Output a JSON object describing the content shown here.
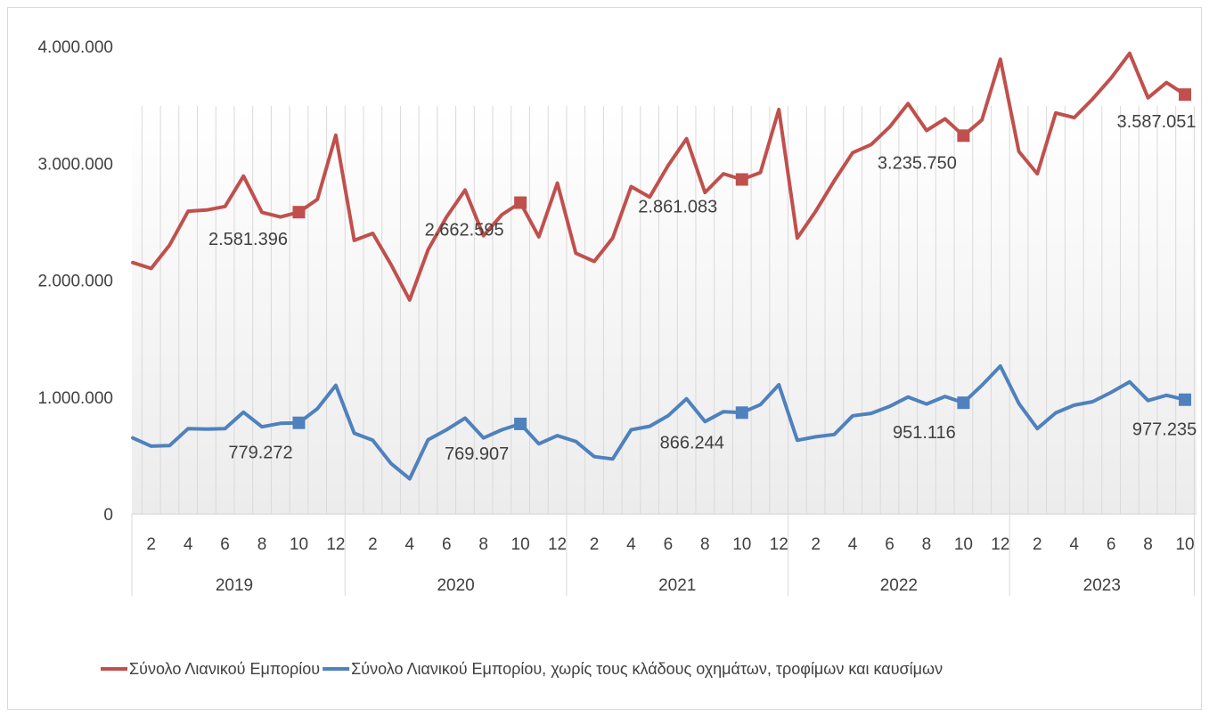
{
  "chart_data": {
    "type": "line",
    "y_ticks": [
      "4.000.000",
      "3.000.000",
      "2.000.000",
      "1.000.000",
      "0"
    ],
    "ylim": [
      0,
      4000000
    ],
    "grid": "vertical hairlines at each month",
    "legend_position": "bottom",
    "years": [
      "2019",
      "2020",
      "2021",
      "2022",
      "2023"
    ],
    "months_per_year": [
      12,
      12,
      12,
      12,
      10
    ],
    "x_tick_labels": [
      "2",
      "4",
      "6",
      "8",
      "10",
      "12"
    ],
    "series": [
      {
        "name": "Σύνολο Λιανικού Εμπορίου",
        "color": "#c0504d",
        "values": [
          2150000,
          2100000,
          2300000,
          2590000,
          2600000,
          2630000,
          2890000,
          2580000,
          2540000,
          2581396,
          2690000,
          3240000,
          2340000,
          2400000,
          2130000,
          1830000,
          2260000,
          2540000,
          2770000,
          2380000,
          2560000,
          2662595,
          2370000,
          2830000,
          2230000,
          2160000,
          2360000,
          2800000,
          2710000,
          2980000,
          3210000,
          2750000,
          2910000,
          2861083,
          2920000,
          3460000,
          2360000,
          2590000,
          2850000,
          3090000,
          3160000,
          3310000,
          3510000,
          3280000,
          3380000,
          3235750,
          3370000,
          3890000,
          3100000,
          2910000,
          3430000,
          3390000,
          3550000,
          3730000,
          3940000,
          3560000,
          3690000,
          3587051
        ],
        "labels": [
          {
            "index": 9,
            "text": "2.581.396"
          },
          {
            "index": 21,
            "text": "2.662.595"
          },
          {
            "index": 33,
            "text": "2.861.083"
          },
          {
            "index": 45,
            "text": "3.235.750"
          },
          {
            "index": 57,
            "text": "3.587.051"
          }
        ]
      },
      {
        "name": "Σύνολο Λιανικού Εμπορίου, χωρίς τους κλάδους οχημάτων, τροφίμων και καυσίμων",
        "color": "#4f81bd",
        "values": [
          650000,
          580000,
          585000,
          730000,
          725000,
          730000,
          870000,
          745000,
          775000,
          779272,
          900000,
          1100000,
          690000,
          630000,
          430000,
          300000,
          635000,
          720000,
          820000,
          650000,
          720000,
          769907,
          600000,
          670000,
          620000,
          490000,
          470000,
          720000,
          750000,
          840000,
          985000,
          790000,
          875000,
          866244,
          935000,
          1105000,
          630000,
          660000,
          680000,
          840000,
          860000,
          920000,
          1000000,
          940000,
          1005000,
          951116,
          1100000,
          1265000,
          945000,
          730000,
          865000,
          930000,
          960000,
          1040000,
          1130000,
          970000,
          1015000,
          977235
        ],
        "labels": [
          {
            "index": 9,
            "text": "779.272"
          },
          {
            "index": 21,
            "text": "769.907"
          },
          {
            "index": 33,
            "text": "866.244"
          },
          {
            "index": 45,
            "text": "951.116"
          },
          {
            "index": 57,
            "text": "977.235"
          }
        ]
      }
    ]
  }
}
